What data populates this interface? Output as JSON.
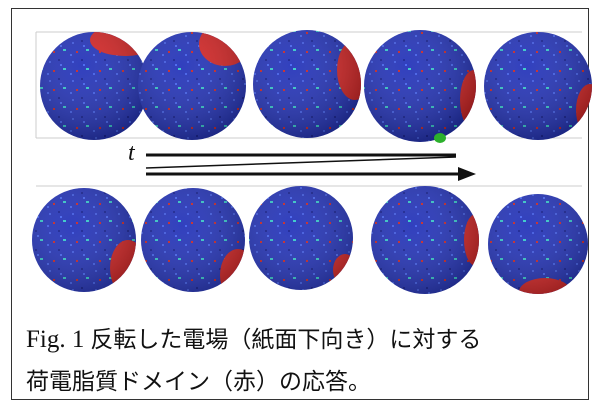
{
  "figure": {
    "time_label": "t",
    "caption": {
      "label": "Fig. 1",
      "lines": [
        "反転した電場（紙面下向き）に対する",
        "荷電脂質ドメイン（赤）の応答。"
      ]
    }
  }
}
